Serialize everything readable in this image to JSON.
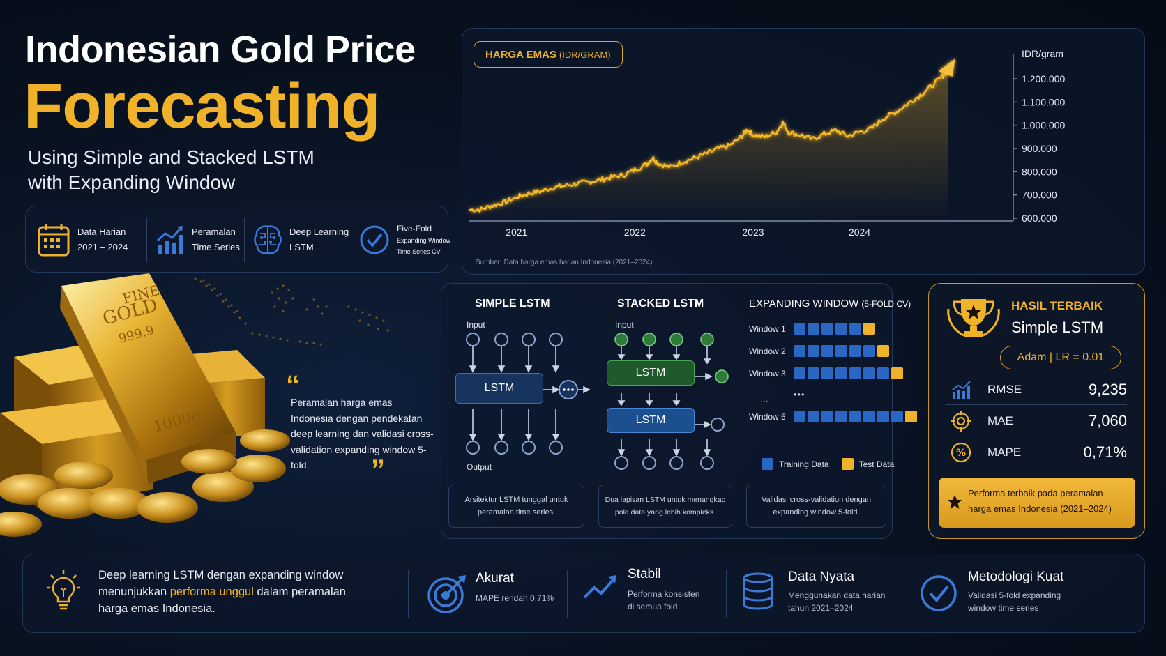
{
  "header": {
    "title_line1": "Indonesian Gold Price",
    "title_line2": "Forecasting",
    "subtitle_line1": "Using Simple and Stacked LSTM",
    "subtitle_line2": "with Expanding Window"
  },
  "features": [
    {
      "icon": "calendar-icon",
      "line1": "Data Harian",
      "line2": "2021 – 2024"
    },
    {
      "icon": "bar-chart-icon",
      "line1": "Peramalan",
      "line2": "Time Series"
    },
    {
      "icon": "brain-icon",
      "line1": "Deep Learning",
      "line2": "LSTM"
    },
    {
      "icon": "check-circle-icon",
      "line1": "Five-Fold",
      "line2": "Expanding Window",
      "line3": "Time Series CV"
    }
  ],
  "image": {
    "bar_text_1": "FINE",
    "bar_text_2": "GOLD",
    "bar_text_3": "999.9",
    "bar_text_4": "1000g"
  },
  "quote": {
    "open": "“",
    "text": "Peramalan harga emas Indonesia dengan pendekatan deep learning dan validasi cross-validation expanding window 5-fold.",
    "close": "”"
  },
  "chart_data": {
    "type": "line",
    "badge": "HARGA EMAS",
    "badge_unit": "(IDR/GRAM)",
    "ylabel": "IDR/gram",
    "ylim": [
      600000,
      1200000
    ],
    "y_ticks": [
      "1.200.000",
      "1.100.000",
      "1.000.000",
      "900.000",
      "800.000",
      "700.000",
      "600.000"
    ],
    "x_ticks": [
      "2021",
      "2022",
      "2023",
      "2024"
    ],
    "x_tick_values": [
      2021.1,
      2022.1,
      2023.1,
      2024.0
    ],
    "xlim": [
      2020.7,
      2025.3
    ],
    "series": [
      {
        "values": [
          [
            2020.7,
            636000
          ],
          [
            2020.8,
            638000
          ],
          [
            2020.9,
            655000
          ],
          [
            2021.0,
            668000
          ],
          [
            2021.1,
            690000
          ],
          [
            2021.2,
            706000
          ],
          [
            2021.3,
            715000
          ],
          [
            2021.4,
            732000
          ],
          [
            2021.5,
            739000
          ],
          [
            2021.6,
            748000
          ],
          [
            2021.7,
            756000
          ],
          [
            2021.8,
            764000
          ],
          [
            2021.9,
            776000
          ],
          [
            2022.0,
            785000
          ],
          [
            2022.1,
            808000
          ],
          [
            2022.2,
            832000
          ],
          [
            2022.25,
            860000
          ],
          [
            2022.3,
            835000
          ],
          [
            2022.4,
            820000
          ],
          [
            2022.5,
            842000
          ],
          [
            2022.6,
            858000
          ],
          [
            2022.7,
            877000
          ],
          [
            2022.8,
            898000
          ],
          [
            2022.9,
            912000
          ],
          [
            2023.0,
            950000
          ],
          [
            2023.05,
            981000
          ],
          [
            2023.1,
            958000
          ],
          [
            2023.2,
            950000
          ],
          [
            2023.3,
            972000
          ],
          [
            2023.35,
            1012000
          ],
          [
            2023.4,
            970000
          ],
          [
            2023.5,
            958000
          ],
          [
            2023.6,
            940000
          ],
          [
            2023.7,
            962000
          ],
          [
            2023.8,
            978000
          ],
          [
            2023.9,
            953000
          ],
          [
            2024.0,
            972000
          ],
          [
            2024.1,
            985000
          ],
          [
            2024.2,
            1030000
          ],
          [
            2024.3,
            1055000
          ],
          [
            2024.4,
            1090000
          ],
          [
            2024.5,
            1125000
          ],
          [
            2024.6,
            1165000
          ],
          [
            2024.7,
            1210000
          ],
          [
            2024.75,
            1245000
          ]
        ]
      }
    ],
    "source": "Sumber: Data harga emas harian Indonesia (2021–2024)"
  },
  "models": {
    "simple": {
      "title": "SIMPLE LSTM",
      "input_label": "Input",
      "output_label": "Output",
      "block": "LSTM",
      "desc": "Arsitektur LSTM tunggal untuk peramalan time series."
    },
    "stacked": {
      "title": "STACKED LSTM",
      "input_label": "Input",
      "block1": "LSTM",
      "block2": "LSTM",
      "desc": "Dua lapisan LSTM untuk menangkap pola data yang lebih kompleks."
    },
    "expanding": {
      "title": "EXPANDING WINDOW",
      "title_small": "(5-FOLD CV)",
      "windows": [
        {
          "label": "Window 1",
          "train": 5,
          "test": 1
        },
        {
          "label": "Window 2",
          "train": 6,
          "test": 1
        },
        {
          "label": "Window 3",
          "train": 7,
          "test": 1
        },
        {
          "label": "Window 5",
          "train": 8,
          "test": 1
        }
      ],
      "ellipsis": "…",
      "ellipsis2": "• • •",
      "legend_train": "Training Data",
      "legend_test": "Test Data",
      "desc": "Validasi cross-validation dengan expanding window 5-fold."
    }
  },
  "result": {
    "heading": "HASIL TERBAIK",
    "model": "Simple LSTM",
    "params": "Adam  |  LR = 0.01",
    "metrics": [
      {
        "icon": "bar-chart-icon",
        "name": "RMSE",
        "value": "9,235"
      },
      {
        "icon": "target-icon",
        "name": "MAE",
        "value": "7,060"
      },
      {
        "icon": "percent-icon",
        "name": "MAPE",
        "value": "0,71%"
      }
    ],
    "banner_line1": "Performa terbaik pada peramalan",
    "banner_line2": "harga emas Indonesia (2021–2024)"
  },
  "bottom": {
    "summary_part1": "Deep learning LSTM dengan expanding window",
    "summary_part2": "menunjukkan ",
    "summary_highlight": "performa unggul",
    "summary_part3": " dalam peramalan",
    "summary_part4": "harga emas Indonesia.",
    "items": [
      {
        "icon": "target-icon",
        "title": "Akurat",
        "line1": "MAPE rendah 0,71%",
        "line2": ""
      },
      {
        "icon": "trend-up-icon",
        "title": "Stabil",
        "line1": "Performa konsisten",
        "line2": "di semua fold"
      },
      {
        "icon": "database-icon",
        "title": "Data Nyata",
        "line1": "Menggunakan data harian",
        "line2": "tahun 2021–2024"
      },
      {
        "icon": "check-circle-icon",
        "title": "Metodologi Kuat",
        "line1": "Validasi 5-fold expanding",
        "line2": "window time series"
      }
    ]
  },
  "colors": {
    "gold": "#f0b229",
    "blue": "#2a66c4",
    "green": "#2f7a3a",
    "background": "#08111f"
  }
}
